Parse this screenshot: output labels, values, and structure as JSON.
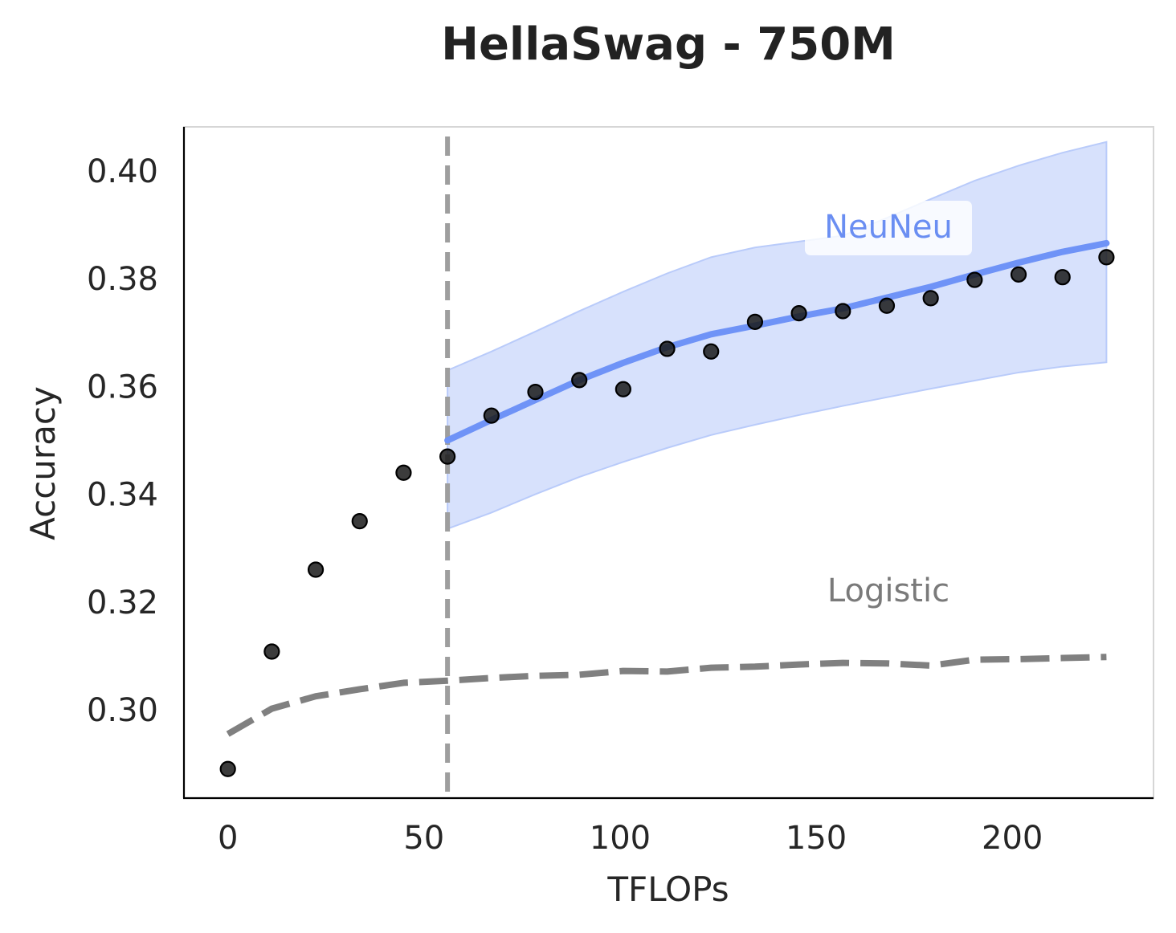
{
  "chart_data": {
    "type": "line",
    "title": "HellaSwag - 750M",
    "xlabel": "TFLOPs",
    "ylabel": "Accuracy",
    "xlim": [
      -11.2,
      236
    ],
    "ylim": [
      0.2836,
      0.4082
    ],
    "xticks": [
      0,
      50,
      100,
      150,
      200
    ],
    "xtick_labels": [
      "0",
      "50",
      "100",
      "150",
      "200"
    ],
    "yticks": [
      0.3,
      0.32,
      0.34,
      0.36,
      0.38,
      0.4
    ],
    "ytick_labels": [
      "0.30",
      "0.32",
      "0.34",
      "0.36",
      "0.38",
      "0.40"
    ],
    "grid": false,
    "legend": "none",
    "vline_x": 56,
    "observed": {
      "x": [
        0,
        11.2,
        22.4,
        33.6,
        44.8,
        56,
        67.2,
        78.4,
        89.6,
        100.8,
        112,
        123.2,
        134.4,
        145.6,
        156.8,
        168,
        179.2,
        190.4,
        201.6,
        212.8,
        224
      ],
      "y": [
        0.289,
        0.3108,
        0.326,
        0.335,
        0.344,
        0.347,
        0.3546,
        0.359,
        0.3612,
        0.3595,
        0.367,
        0.3665,
        0.372,
        0.3736,
        0.374,
        0.375,
        0.3764,
        0.3798,
        0.3808,
        0.3803,
        0.384
      ]
    },
    "series": [
      {
        "name": "NeuNeu",
        "x": [
          56,
          67.2,
          78.4,
          89.6,
          100.8,
          112,
          123.2,
          134.4,
          145.6,
          156.8,
          168,
          179.2,
          190.4,
          201.6,
          212.8,
          224
        ],
        "y": [
          0.35,
          0.3538,
          0.3575,
          0.3612,
          0.3644,
          0.3673,
          0.3697,
          0.3713,
          0.373,
          0.3745,
          0.3765,
          0.3785,
          0.3808,
          0.383,
          0.385,
          0.3866
        ],
        "lower": [
          0.3336,
          0.3366,
          0.34,
          0.3432,
          0.346,
          0.3486,
          0.351,
          0.3529,
          0.3547,
          0.3564,
          0.358,
          0.3596,
          0.3611,
          0.3626,
          0.3637,
          0.3645
        ],
        "upper": [
          0.363,
          0.3665,
          0.3702,
          0.374,
          0.3776,
          0.381,
          0.384,
          0.3858,
          0.3869,
          0.388,
          0.3913,
          0.3948,
          0.3982,
          0.401,
          0.4034,
          0.4054
        ]
      },
      {
        "name": "Logistic",
        "x": [
          0,
          11.2,
          22.4,
          33.6,
          44.8,
          56,
          67.2,
          78.4,
          89.6,
          100.8,
          112,
          123.2,
          134.4,
          145.6,
          156.8,
          168,
          179.2,
          190.4,
          201.6,
          212.8,
          224
        ],
        "y": [
          0.2955,
          0.3002,
          0.3025,
          0.3038,
          0.305,
          0.3054,
          0.3059,
          0.3063,
          0.3065,
          0.3072,
          0.3071,
          0.3078,
          0.308,
          0.3084,
          0.3087,
          0.3086,
          0.3082,
          0.3093,
          0.3094,
          0.3096,
          0.3098
        ]
      }
    ],
    "colors": {
      "observed_points": "#1a1a1a",
      "neuneu_line": "#6f93f7",
      "neuneu_band": "#d7e1fc",
      "neuneu_text": "#6a8ef2",
      "logistic_line": "#808080",
      "logistic_text": "#7a7a7a",
      "vline": "#9e9e9e"
    }
  }
}
